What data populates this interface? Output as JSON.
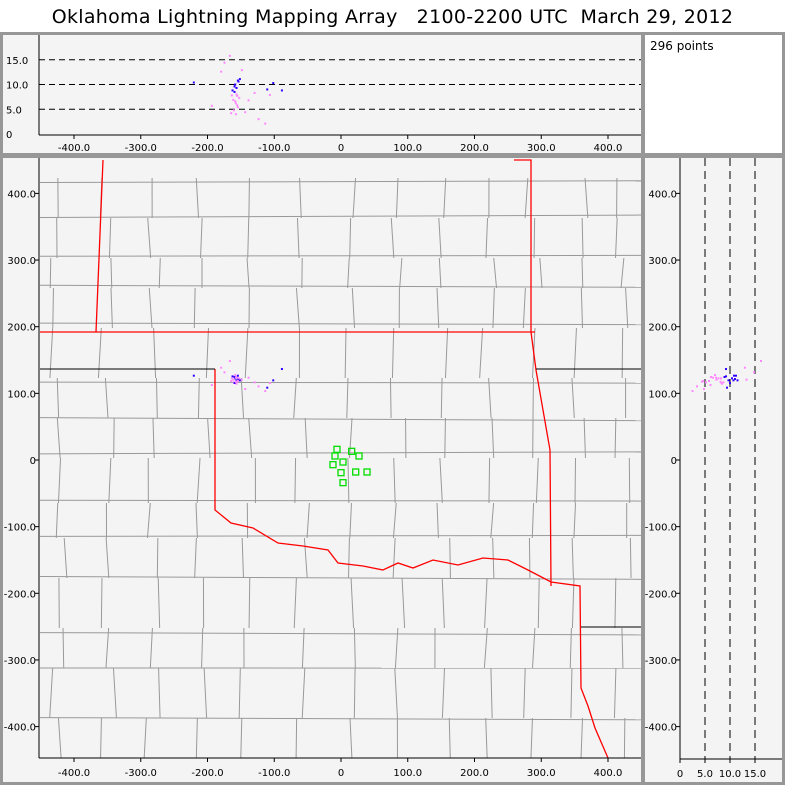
{
  "title": "Oklahoma Lightning Mapping Array   2100-2200 UTC  March 29, 2012",
  "info": {
    "points_label": "296 points"
  },
  "colors": {
    "background": "#979797",
    "plot_bg": "#f4f4f4",
    "state_border": "#ff0000",
    "county_border": "#999999",
    "station": "#00dd00",
    "source_low": "#ff88ff",
    "source_high": "#3300ff"
  },
  "chart_data": {
    "type": "scatter",
    "plan_view": {
      "xlim": [
        -450,
        450
      ],
      "ylim": [
        -450,
        450
      ],
      "xticks": [
        "-400.0",
        "-300.0",
        "-200.0",
        "-100.0",
        "0",
        "100.0",
        "200.0",
        "300.0",
        "400.0"
      ],
      "yticks": [
        "400.0",
        "300.0",
        "200.0",
        "100.0",
        "0",
        "-100.0",
        "-200.0",
        "-300.0",
        "-400.0"
      ]
    },
    "altitude_x_view": {
      "ylim": [
        0,
        20
      ],
      "yticks": [
        "15.0",
        "10.0",
        "5.0",
        "0"
      ],
      "grid": "dashed at 5, 10, 15"
    },
    "altitude_y_view": {
      "xlim": [
        0,
        20
      ],
      "xticks": [
        "0",
        "5.0",
        "10.0",
        "15.0"
      ],
      "grid": "dashed at 5, 10, 15"
    },
    "stations": [
      [
        -6,
        16
      ],
      [
        -9,
        6
      ],
      [
        -12,
        -7
      ],
      [
        3,
        -3
      ],
      [
        16,
        13
      ],
      [
        27,
        6
      ],
      [
        22,
        -18
      ],
      [
        39,
        -18
      ],
      [
        0,
        -19
      ],
      [
        3,
        -34
      ]
    ],
    "sources": [
      {
        "x": -160,
        "y": 124,
        "z": 10.2
      },
      {
        "x": -158,
        "y": 121,
        "z": 9.5
      },
      {
        "x": -161,
        "y": 126,
        "z": 8.7
      },
      {
        "x": -157,
        "y": 119,
        "z": 7.9
      },
      {
        "x": -163,
        "y": 122,
        "z": 7.1
      },
      {
        "x": -159,
        "y": 125,
        "z": 6.4
      },
      {
        "x": -156,
        "y": 120,
        "z": 5.6
      },
      {
        "x": -162,
        "y": 118,
        "z": 5.0
      },
      {
        "x": -155,
        "y": 123,
        "z": 10.8
      },
      {
        "x": -164,
        "y": 127,
        "z": 9.0
      },
      {
        "x": -158,
        "y": 116,
        "z": 8.2
      },
      {
        "x": -160,
        "y": 129,
        "z": 6.8
      },
      {
        "x": -153,
        "y": 121,
        "z": 11.3
      },
      {
        "x": -166,
        "y": 120,
        "z": 4.4
      },
      {
        "x": -157,
        "y": 126,
        "z": 6.0
      },
      {
        "x": -161,
        "y": 117,
        "z": 9.8
      },
      {
        "x": -154,
        "y": 124,
        "z": 7.5
      },
      {
        "x": -165,
        "y": 124,
        "z": 8.0
      },
      {
        "x": -159,
        "y": 119,
        "z": 4.2
      },
      {
        "x": -156,
        "y": 128,
        "z": 11.0
      },
      {
        "x": -131,
        "y": 118,
        "z": 8.5
      },
      {
        "x": -112,
        "y": 110,
        "z": 9.2
      },
      {
        "x": -108,
        "y": 117,
        "z": 8.1
      },
      {
        "x": -103,
        "y": 121,
        "z": 10.5
      },
      {
        "x": -181,
        "y": 140,
        "z": 12.8
      },
      {
        "x": -176,
        "y": 133,
        "z": 14.6
      },
      {
        "x": -168,
        "y": 150,
        "z": 16.0
      },
      {
        "x": -125,
        "y": 112,
        "z": 3.2
      },
      {
        "x": -115,
        "y": 105,
        "z": 2.3
      },
      {
        "x": -90,
        "y": 138,
        "z": 9.0
      },
      {
        "x": -222,
        "y": 128,
        "z": 10.6
      },
      {
        "x": -195,
        "y": 114,
        "z": 5.9
      },
      {
        "x": -150,
        "y": 122,
        "z": 13.1
      },
      {
        "x": -140,
        "y": 125,
        "z": 7.0
      },
      {
        "x": -145,
        "y": 108,
        "z": 4.6
      }
    ]
  }
}
